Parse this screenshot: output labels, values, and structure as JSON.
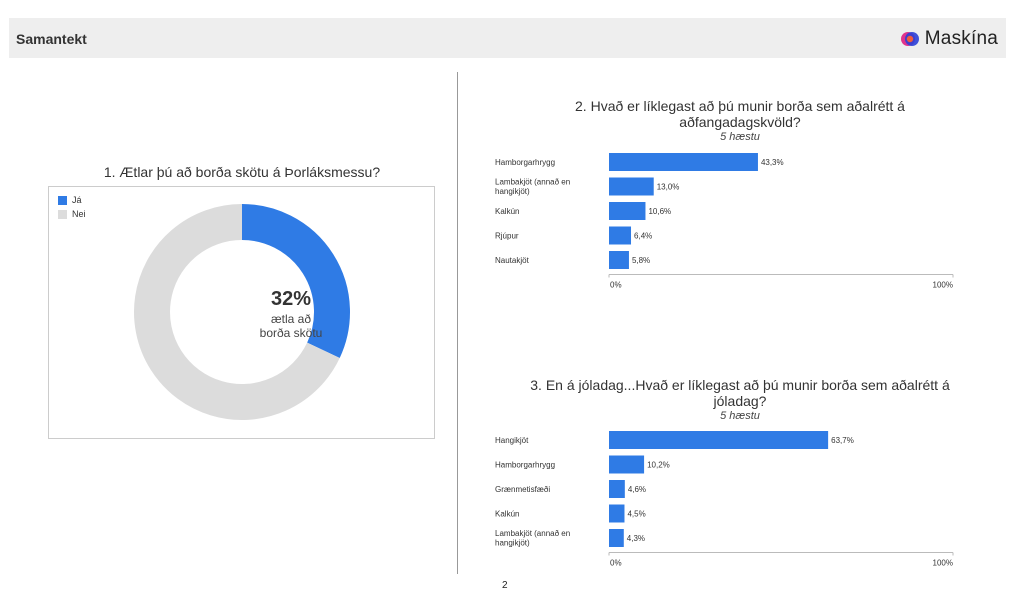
{
  "header": {
    "title": "Samantekt",
    "logo_text": "Maskína"
  },
  "page_number": "2",
  "colors": {
    "accent": "#2f7be5",
    "neutral": "#dcdcdc"
  },
  "chart_data": [
    {
      "type": "donut",
      "title": "1. Ætlar þú að borða skötu á Þorláksmessu?",
      "legend": [
        "Já",
        "Nei"
      ],
      "legend_position": "top-left",
      "values": [
        32,
        68
      ],
      "center_value": "32%",
      "center_label_line1": "ætla að",
      "center_label_line2": "borða skötu"
    },
    {
      "type": "bar",
      "orientation": "horizontal",
      "title_line1": "2. Hvað er líklegast að þú munir borða sem aðalrétt á",
      "title_line2": "aðfangadagskvöld?",
      "subtitle": "5 hæstu",
      "categories": [
        [
          "Hamborgarhrygg"
        ],
        [
          "Lambakjöt (annað en",
          "hangikjöt)"
        ],
        [
          "Kalkún"
        ],
        [
          "Rjúpur"
        ],
        [
          "Nautakjöt"
        ]
      ],
      "values": [
        43.3,
        13.0,
        10.6,
        6.4,
        5.8
      ],
      "value_labels": [
        "43,3%",
        "13,0%",
        "10,6%",
        "6,4%",
        "5,8%"
      ],
      "xlim": [
        0,
        100
      ],
      "x_ticks": [
        "0%",
        "100%"
      ]
    },
    {
      "type": "bar",
      "orientation": "horizontal",
      "title_line1": "3. En á jóladag...Hvað er líklegast að þú munir borða sem aðalrétt á",
      "title_line2": "jóladag?",
      "subtitle": "5 hæstu",
      "categories": [
        [
          "Hangikjöt"
        ],
        [
          "Hamborgarhrygg"
        ],
        [
          "Grænmetisfæði"
        ],
        [
          "Kalkún"
        ],
        [
          "Lambakjöt (annað en",
          "hangikjöt)"
        ]
      ],
      "values": [
        63.7,
        10.2,
        4.6,
        4.5,
        4.3
      ],
      "value_labels": [
        "63,7%",
        "10,2%",
        "4,6%",
        "4,5%",
        "4,3%"
      ],
      "xlim": [
        0,
        100
      ],
      "x_ticks": [
        "0%",
        "100%"
      ]
    }
  ]
}
